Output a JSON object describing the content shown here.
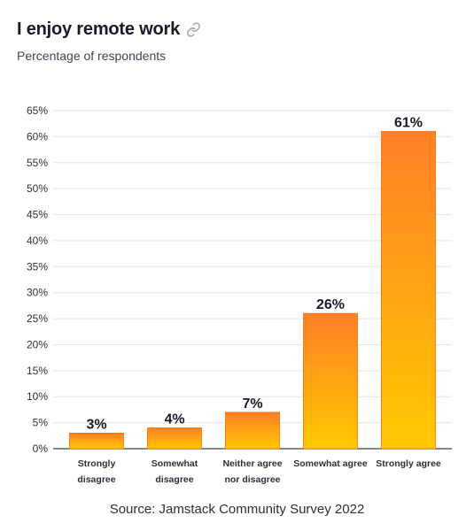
{
  "header": {
    "title": "I enjoy remote work",
    "subtitle": "Percentage of respondents"
  },
  "chart_data": {
    "type": "bar",
    "categories": [
      [
        "Strongly",
        "disagree"
      ],
      [
        "Somewhat",
        "disagree"
      ],
      [
        "Neither agree",
        "nor disagree"
      ],
      [
        "Somewhat agree"
      ],
      [
        "Strongly agree"
      ]
    ],
    "values": [
      3,
      4,
      7,
      26,
      61
    ],
    "data_labels": [
      "3%",
      "4%",
      "7%",
      "26%",
      "61%"
    ],
    "title": "I enjoy remote work",
    "subtitle": "Percentage of respondents",
    "xlabel": "",
    "ylabel": "",
    "ylim": [
      0,
      65
    ],
    "yticks": [
      0,
      5,
      10,
      15,
      20,
      25,
      30,
      35,
      40,
      45,
      50,
      55,
      60,
      65
    ],
    "ytick_labels": [
      "0%",
      "5%",
      "10%",
      "15%",
      "20%",
      "25%",
      "30%",
      "35%",
      "40%",
      "45%",
      "50%",
      "55%",
      "60%",
      "65%"
    ],
    "grid": true,
    "legend": "none",
    "colors": {
      "bar_top": "#ff7f27",
      "bar_bottom": "#ffc900",
      "bar_stroke": "#ff6a00",
      "grid": "#e3e5ea",
      "axis": "#3a3f4a"
    }
  },
  "footer": {
    "source": "Source: Jamstack Community Survey 2022"
  },
  "icons": {
    "link": "link-icon"
  }
}
